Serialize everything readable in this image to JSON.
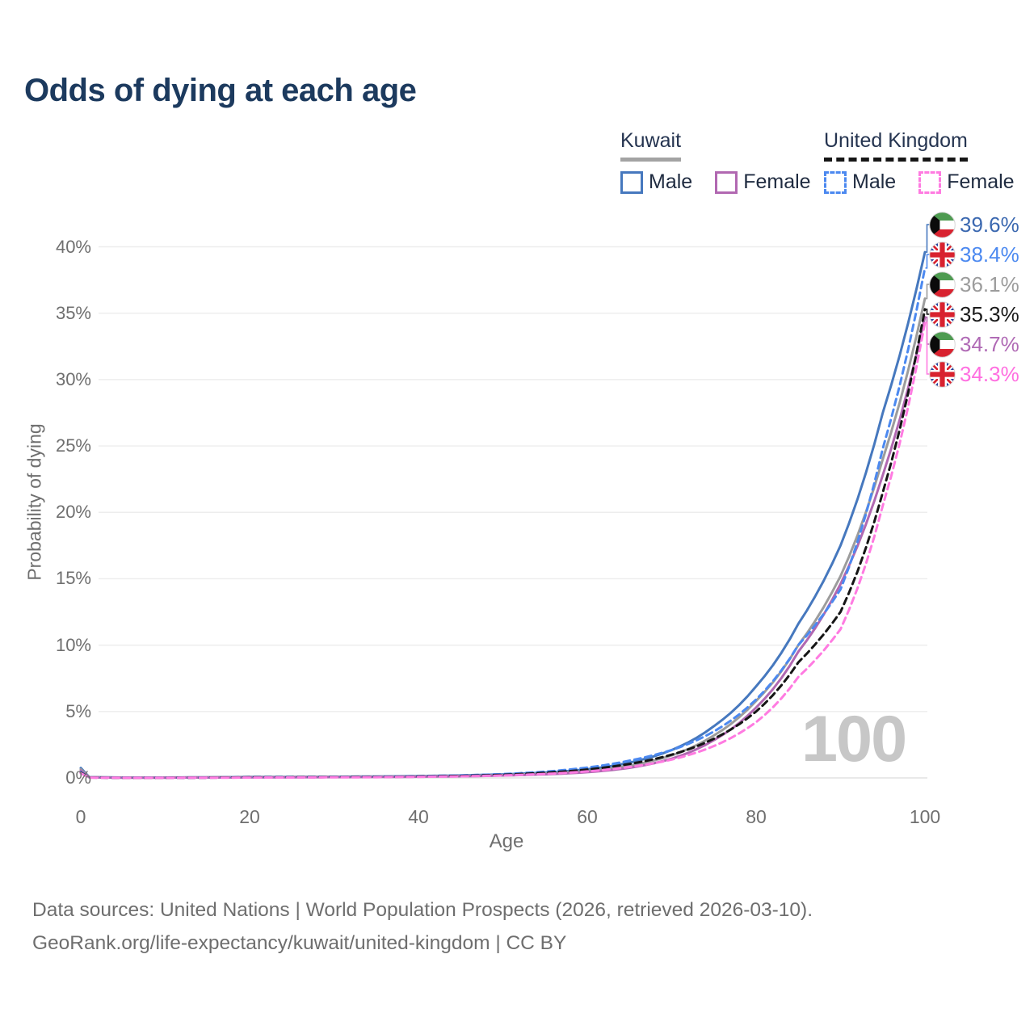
{
  "title": "Odds of dying at each age",
  "legend": {
    "groups": [
      {
        "country": "Kuwait",
        "line_style": "solid",
        "underline_color": "#A3A3A3",
        "items": [
          {
            "label": "Male",
            "color": "#4678BE",
            "dashed": false
          },
          {
            "label": "Female",
            "color": "#B168B1",
            "dashed": false
          }
        ]
      },
      {
        "country": "United Kingdom",
        "line_style": "dashed",
        "underline_color": "#161616",
        "items": [
          {
            "label": "Male",
            "color": "#4C89F0",
            "dashed": true
          },
          {
            "label": "Female",
            "color": "#FF7BE1",
            "dashed": true
          }
        ]
      }
    ]
  },
  "chart_data": {
    "type": "line",
    "title": "Odds of dying at each age",
    "xlabel": "Age",
    "ylabel": "Probability of dying",
    "xlim": [
      0,
      100
    ],
    "ylim_percent": [
      0,
      42
    ],
    "x_ticks": [
      0,
      20,
      40,
      60,
      80,
      100
    ],
    "y_ticks_percent": [
      0,
      5,
      10,
      15,
      20,
      25,
      30,
      35,
      40
    ],
    "grid": "horizontal",
    "hover_age_indicator": "100",
    "ages": [
      0,
      1,
      5,
      10,
      15,
      20,
      25,
      30,
      35,
      40,
      45,
      50,
      55,
      60,
      65,
      70,
      75,
      80,
      85,
      90,
      95,
      100
    ],
    "series": [
      {
        "name": "Kuwait Male",
        "country": "Kuwait",
        "sex": "Male",
        "flag": "kuwait",
        "color": "#4678BE",
        "label_color": "#3B68B0",
        "dashed": false,
        "end_label": "39.6%",
        "end_value": 39.6,
        "end_row": 0,
        "values": [
          0.75,
          0.06,
          0.03,
          0.03,
          0.05,
          0.07,
          0.08,
          0.09,
          0.11,
          0.14,
          0.19,
          0.27,
          0.4,
          0.65,
          1.15,
          2.1,
          3.9,
          6.9,
          11.6,
          17.5,
          27.5,
          39.6
        ]
      },
      {
        "name": "Kuwait Total",
        "country": "Kuwait",
        "sex": "Total",
        "flag": "kuwait",
        "color": "#9C9C9C",
        "label_color": "#9C9C9C",
        "dashed": false,
        "end_label": "36.1%",
        "end_value": 36.1,
        "end_row": 2,
        "values": [
          0.65,
          0.05,
          0.025,
          0.025,
          0.04,
          0.055,
          0.065,
          0.075,
          0.09,
          0.115,
          0.155,
          0.22,
          0.33,
          0.52,
          0.92,
          1.7,
          3.2,
          5.8,
          10.0,
          15.2,
          24.0,
          36.1
        ]
      },
      {
        "name": "Kuwait Female",
        "country": "Kuwait",
        "sex": "Female",
        "flag": "kuwait",
        "color": "#B168B1",
        "label_color": "#B06AB5",
        "dashed": false,
        "end_label": "34.7%",
        "end_value": 34.7,
        "end_row": 4,
        "values": [
          0.55,
          0.045,
          0.02,
          0.02,
          0.03,
          0.04,
          0.05,
          0.06,
          0.07,
          0.09,
          0.12,
          0.18,
          0.27,
          0.43,
          0.76,
          1.45,
          2.85,
          5.3,
          9.5,
          14.6,
          22.8,
          34.7
        ]
      },
      {
        "name": "United Kingdom Male",
        "country": "United Kingdom",
        "sex": "Male",
        "flag": "uk",
        "color": "#4C89F0",
        "label_color": "#4C89F0",
        "dashed": true,
        "end_label": "38.4%",
        "end_value": 38.4,
        "end_row": 1,
        "values": [
          0.45,
          0.035,
          0.01,
          0.01,
          0.025,
          0.05,
          0.06,
          0.07,
          0.09,
          0.13,
          0.19,
          0.29,
          0.47,
          0.78,
          1.3,
          2.1,
          3.5,
          5.9,
          10.0,
          14.2,
          24.8,
          38.4
        ]
      },
      {
        "name": "United Kingdom Total",
        "country": "United Kingdom",
        "sex": "Total",
        "flag": "uk",
        "color": "#151515",
        "label_color": "#1A1A1A",
        "dashed": true,
        "end_label": "35.3%",
        "end_value": 35.3,
        "end_row": 3,
        "values": [
          0.4,
          0.03,
          0.008,
          0.008,
          0.02,
          0.04,
          0.05,
          0.06,
          0.075,
          0.105,
          0.155,
          0.24,
          0.39,
          0.63,
          1.05,
          1.75,
          2.95,
          5.0,
          8.7,
          12.5,
          21.5,
          35.3
        ]
      },
      {
        "name": "United Kingdom Female",
        "country": "United Kingdom",
        "sex": "Female",
        "flag": "uk",
        "color": "#FF7BE1",
        "label_color": "#FF6FE0",
        "dashed": true,
        "end_label": "34.3%",
        "end_value": 34.3,
        "end_row": 5,
        "values": [
          0.35,
          0.025,
          0.007,
          0.007,
          0.015,
          0.025,
          0.032,
          0.042,
          0.057,
          0.082,
          0.12,
          0.19,
          0.3,
          0.49,
          0.82,
          1.38,
          2.4,
          4.2,
          7.6,
          11.2,
          20.5,
          34.3
        ]
      }
    ]
  },
  "watermark": "100",
  "footer": {
    "line1": "Data sources: United Nations | World Population Prospects (2026, retrieved 2026-03-10).",
    "line2": "GeoRank.org/life-expectancy/kuwait/united-kingdom | CC BY"
  }
}
